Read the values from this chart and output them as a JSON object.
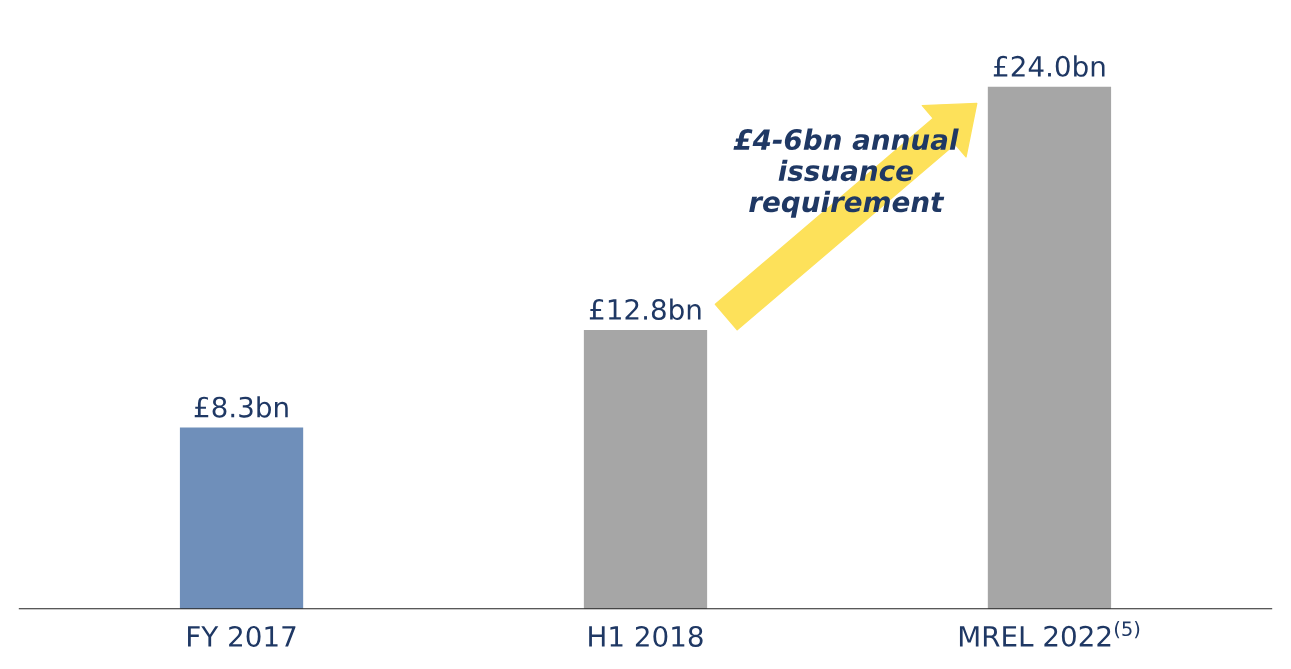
{
  "chart_data": {
    "type": "bar",
    "categories": [
      "FY 2017",
      "H1 2018",
      "MREL 2022$^{(5)}$"
    ],
    "values": [
      8.3,
      12.8,
      24.0
    ],
    "colors": [
      "#6f8fba",
      "#a6a6a6",
      "#a6a6a6"
    ],
    "value_labels": [
      "£8.3bn",
      "£12.8bn",
      "£24.0bn"
    ],
    "annotations": [
      "£4-6bn annual\nissuance\nrequirement"
    ]
  }
}
